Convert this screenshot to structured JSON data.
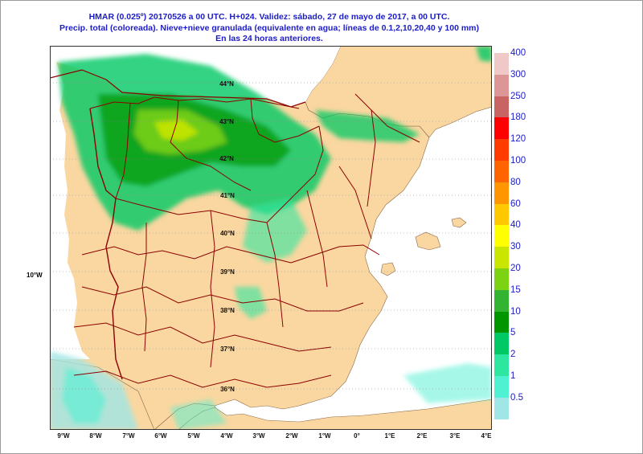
{
  "title": {
    "line1": "HMAR (0.025º) 20170526 a 00 UTC.  H+024. Validez: sábado, 27 de mayo de 2017,  a  00 UTC.",
    "line2": "Precip. total (coloreada). Nieve+nieve granulada (equivalente en agua; líneas de 0.1,2,10,20,40 y 100 mm)",
    "line3": "En las 24 horas anteriores."
  },
  "legend": [
    {
      "label": "400",
      "color": "#f0c8c8"
    },
    {
      "label": "300",
      "color": "#dc9696"
    },
    {
      "label": "250",
      "color": "#c86464"
    },
    {
      "label": "180",
      "color": "#ff0000"
    },
    {
      "label": "120",
      "color": "#ff3c00"
    },
    {
      "label": "100",
      "color": "#ff6400"
    },
    {
      "label": "80",
      "color": "#ff9600"
    },
    {
      "label": "60",
      "color": "#ffc800"
    },
    {
      "label": "40",
      "color": "#ffff00"
    },
    {
      "label": "30",
      "color": "#c8e600"
    },
    {
      "label": "20",
      "color": "#7dd214"
    },
    {
      "label": "15",
      "color": "#32b432"
    },
    {
      "label": "10",
      "color": "#009600"
    },
    {
      "label": "5",
      "color": "#00c864"
    },
    {
      "label": "2",
      "color": "#2de6a0"
    },
    {
      "label": "1",
      "color": "#50f0d2"
    },
    {
      "label": "0.5",
      "color": "#a0e6e6"
    }
  ],
  "longitude_labels": [
    "9°W",
    "8°W",
    "7°W",
    "6°W",
    "5°W",
    "4°W",
    "3°W",
    "2°W",
    "1°W",
    "0°",
    "1°E",
    "2°E",
    "3°E",
    "4°E"
  ],
  "latitude_labels": [
    "44°N",
    "43°N",
    "42°N",
    "41°N",
    "40°N",
    "39°N",
    "38°N",
    "37°N",
    "36°N"
  ],
  "side_label": "10°W",
  "colors": {
    "sea": "#ffffff",
    "land": "#fad7a0",
    "borders": "#8b0000",
    "title_text": "#1c1cc8"
  }
}
